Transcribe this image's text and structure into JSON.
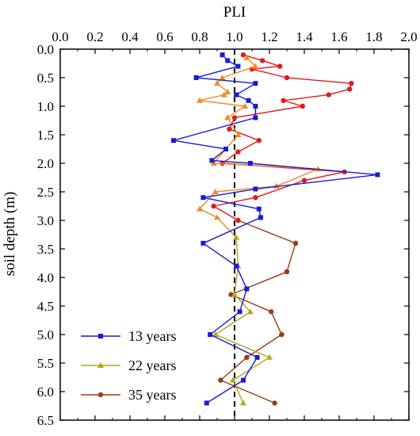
{
  "chart_data": {
    "type": "line",
    "orientation": "depth-profile",
    "title": "",
    "xlabel": "PLI",
    "ylabel": "soil depth (m)",
    "xlim": [
      0.0,
      2.0
    ],
    "ylim": [
      0.0,
      6.5
    ],
    "y_inverted": true,
    "x_ticks": [
      "0.0",
      "0.2",
      "0.4",
      "0.6",
      "0.8",
      "1.0",
      "1.2",
      "1.4",
      "1.6",
      "1.8",
      "2.0"
    ],
    "y_ticks": [
      "0.0",
      "0.5",
      "1.0",
      "1.5",
      "2.0",
      "2.5",
      "3.0",
      "3.5",
      "4.0",
      "4.5",
      "5.0",
      "5.5",
      "6.0",
      "6.5"
    ],
    "reference_line": {
      "x": 1.0,
      "style": "dashed",
      "color": "#000000"
    },
    "legend_position": "bottom-left",
    "series": [
      {
        "name": "13 years",
        "color": "#1a1ad6",
        "marker": "square",
        "points": [
          [
            0.93,
            0.1
          ],
          [
            0.96,
            0.2
          ],
          [
            1.02,
            0.3
          ],
          [
            0.78,
            0.5
          ],
          [
            1.12,
            0.6
          ],
          [
            1.01,
            0.8
          ],
          [
            1.08,
            0.9
          ],
          [
            1.12,
            1.0
          ],
          [
            1.12,
            1.2
          ],
          [
            0.65,
            1.6
          ],
          [
            0.95,
            1.75
          ],
          [
            0.87,
            1.95
          ],
          [
            1.09,
            2.0
          ],
          [
            1.82,
            2.2
          ],
          [
            1.12,
            2.45
          ],
          [
            0.82,
            2.6
          ],
          [
            1.14,
            2.8
          ],
          [
            1.15,
            2.95
          ],
          [
            0.82,
            3.4
          ],
          [
            1.01,
            3.8
          ],
          [
            1.07,
            4.2
          ],
          [
            1.03,
            4.6
          ],
          [
            0.86,
            5.0
          ],
          [
            1.13,
            5.4
          ],
          [
            1.05,
            5.8
          ],
          [
            0.84,
            6.2
          ]
        ]
      },
      {
        "name": "22 years",
        "color": "#b0a81a",
        "marker": "triangle",
        "points": [
          [
            1.07,
            0.15
          ],
          [
            1.12,
            0.3
          ],
          [
            0.93,
            0.5
          ],
          [
            0.9,
            0.6
          ],
          [
            0.96,
            0.75
          ],
          [
            0.94,
            0.8
          ],
          [
            0.8,
            0.9
          ],
          [
            1.06,
            1.0
          ],
          [
            0.96,
            1.2
          ],
          [
            1.02,
            1.5
          ],
          [
            0.88,
            2.0
          ],
          [
            1.48,
            2.1
          ],
          [
            1.24,
            2.4
          ],
          [
            0.89,
            2.5
          ],
          [
            0.8,
            2.8
          ],
          [
            0.9,
            2.95
          ],
          [
            1.01,
            3.3
          ],
          [
            1.02,
            3.8
          ],
          [
            1.0,
            4.3
          ],
          [
            1.09,
            4.6
          ],
          [
            0.89,
            5.0
          ],
          [
            1.2,
            5.4
          ],
          [
            0.99,
            5.8
          ],
          [
            1.05,
            6.2
          ]
        ]
      },
      {
        "name": "35 years",
        "color": "#9a3b17",
        "marker": "circle",
        "points": [
          [
            1.05,
            0.1
          ],
          [
            1.16,
            0.2
          ],
          [
            1.26,
            0.3
          ],
          [
            1.1,
            0.35
          ],
          [
            1.3,
            0.5
          ],
          [
            1.67,
            0.6
          ],
          [
            1.66,
            0.7
          ],
          [
            1.54,
            0.8
          ],
          [
            1.28,
            0.9
          ],
          [
            1.39,
            1.0
          ],
          [
            1.0,
            1.2
          ],
          [
            0.97,
            1.4
          ],
          [
            1.14,
            1.6
          ],
          [
            1.02,
            1.8
          ],
          [
            0.93,
            2.0
          ],
          [
            1.63,
            2.15
          ],
          [
            1.4,
            2.3
          ],
          [
            1.12,
            2.6
          ],
          [
            0.88,
            2.75
          ],
          [
            1.02,
            3.0
          ],
          [
            1.35,
            3.4
          ],
          [
            1.3,
            3.9
          ],
          [
            0.98,
            4.3
          ],
          [
            1.21,
            4.6
          ],
          [
            1.27,
            5.0
          ],
          [
            1.07,
            5.4
          ],
          [
            0.92,
            5.8
          ],
          [
            1.23,
            6.2
          ]
        ]
      }
    ],
    "upper_segment_colors": {
      "22 years": "#f08a24",
      "35 years": "#e31a1a"
    },
    "upper_segment_end_depth": 3.0
  }
}
